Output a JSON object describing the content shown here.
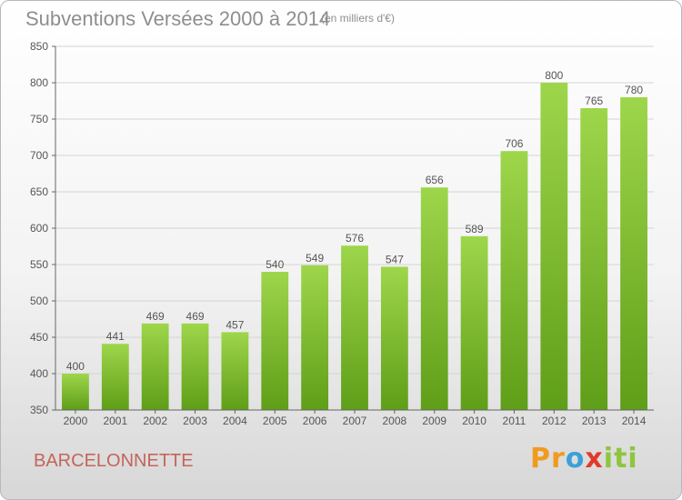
{
  "header": {
    "title": "Subventions Versées 2000 à 2014",
    "subtitle": "(en milliers d'€)"
  },
  "footer": {
    "place": "BARCELONNETTE",
    "logo_text": "Proxiti",
    "logo_letters": [
      {
        "ch": "P",
        "color": "#f29a1e"
      },
      {
        "ch": "r",
        "color": "#f29a1e"
      },
      {
        "ch": "o",
        "color": "#3aa0d8"
      },
      {
        "ch": "x",
        "color": "#e03b2a"
      },
      {
        "ch": "i",
        "color": "#8cc63f"
      },
      {
        "ch": "t",
        "color": "#8cc63f"
      },
      {
        "ch": "i",
        "color": "#8cc63f"
      }
    ]
  },
  "chart_data": {
    "type": "bar",
    "title": "Subventions Versées 2000 à 2014",
    "subtitle": "(en milliers d'€)",
    "xlabel": "",
    "ylabel": "",
    "categories": [
      "2000",
      "2001",
      "2002",
      "2003",
      "2004",
      "2005",
      "2006",
      "2007",
      "2008",
      "2009",
      "2010",
      "2011",
      "2012",
      "2013",
      "2014"
    ],
    "values": [
      400,
      441,
      469,
      469,
      457,
      540,
      549,
      576,
      547,
      656,
      589,
      706,
      800,
      765,
      780
    ],
    "ylim": [
      350,
      850
    ],
    "yticks": [
      350,
      400,
      450,
      500,
      550,
      600,
      650,
      700,
      750,
      800,
      850
    ],
    "grid": true,
    "bar_color_top": "#9ed64b",
    "bar_color_bottom": "#5f9e18",
    "gridline_color": "#d4d4d4"
  }
}
